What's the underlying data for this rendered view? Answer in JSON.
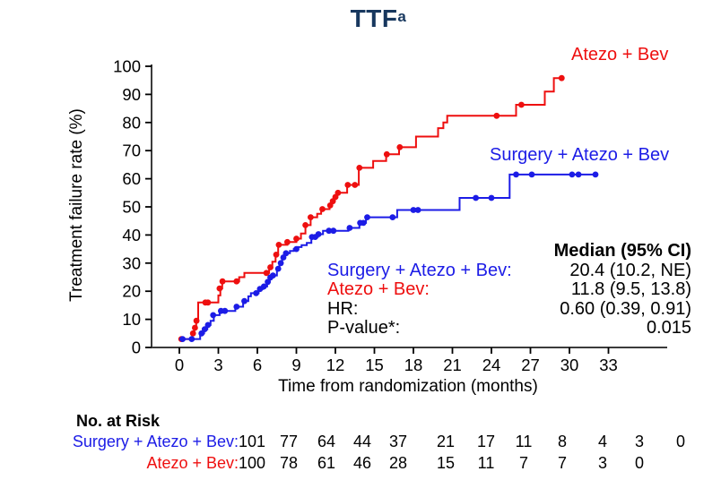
{
  "title": {
    "text": "TTF",
    "superscript": "a"
  },
  "colors": {
    "red": "#ee0f0f",
    "blue": "#1c1ce6",
    "title_navy": "#17375e",
    "axis": "#3b3b3b",
    "black": "#000000"
  },
  "chart_data": {
    "type": "line",
    "subtype": "kaplan-meier-step",
    "title": "TTF",
    "xlabel": "Time from randomization (months)",
    "ylabel": "Treatment failure rate (%)",
    "xlim": [
      0,
      33
    ],
    "ylim": [
      0,
      100
    ],
    "xticks": [
      0,
      3,
      6,
      9,
      12,
      15,
      18,
      21,
      24,
      27,
      30,
      33
    ],
    "yticks": [
      0,
      10,
      20,
      30,
      40,
      50,
      60,
      70,
      80,
      90,
      100
    ],
    "grid": false,
    "series": [
      {
        "name": "Atezo + Bev",
        "color": "#ee0f0f",
        "end_month": 29.6,
        "steps": [
          [
            0,
            3
          ],
          [
            1.0,
            5
          ],
          [
            1.15,
            7
          ],
          [
            1.3,
            9.5
          ],
          [
            1.45,
            16
          ],
          [
            3.0,
            18.5
          ],
          [
            3.15,
            21
          ],
          [
            3.3,
            23.5
          ],
          [
            4.6,
            25
          ],
          [
            5.0,
            26.5
          ],
          [
            6.9,
            28.5
          ],
          [
            7.15,
            30.5
          ],
          [
            7.4,
            33
          ],
          [
            7.6,
            36.5
          ],
          [
            8.3,
            37.5
          ],
          [
            9.0,
            38.7
          ],
          [
            9.35,
            40.5
          ],
          [
            9.7,
            43.5
          ],
          [
            10.1,
            46.3
          ],
          [
            10.6,
            47.5
          ],
          [
            10.9,
            49.2
          ],
          [
            11.55,
            50.5
          ],
          [
            11.75,
            52
          ],
          [
            11.95,
            53.5
          ],
          [
            12.15,
            55
          ],
          [
            12.9,
            57.8
          ],
          [
            13.8,
            63.9
          ],
          [
            14.9,
            66.3
          ],
          [
            15.9,
            68.7
          ],
          [
            16.9,
            71.2
          ],
          [
            18.2,
            75
          ],
          [
            19.9,
            78
          ],
          [
            20.3,
            80
          ],
          [
            20.6,
            82.4
          ],
          [
            25.9,
            86.3
          ],
          [
            28.1,
            91
          ],
          [
            28.8,
            95.8
          ]
        ],
        "censor_marks": [
          [
            0.15,
            3
          ],
          [
            1.05,
            5
          ],
          [
            1.2,
            7
          ],
          [
            1.32,
            9.5
          ],
          [
            2.0,
            16
          ],
          [
            2.2,
            16
          ],
          [
            3.1,
            21
          ],
          [
            3.32,
            23.5
          ],
          [
            4.4,
            23.5
          ],
          [
            6.7,
            26.5
          ],
          [
            7.0,
            28.5
          ],
          [
            7.45,
            33
          ],
          [
            7.65,
            36.5
          ],
          [
            8.3,
            37.5
          ],
          [
            9.0,
            38.7
          ],
          [
            9.7,
            43.5
          ],
          [
            10.1,
            46.3
          ],
          [
            11.0,
            49.2
          ],
          [
            11.6,
            50.5
          ],
          [
            11.8,
            52
          ],
          [
            12.0,
            53.5
          ],
          [
            12.2,
            55
          ],
          [
            12.95,
            57.8
          ],
          [
            13.5,
            57.8
          ],
          [
            13.85,
            63.9
          ],
          [
            15.95,
            68.7
          ],
          [
            16.95,
            71.2
          ],
          [
            24.4,
            82.4
          ],
          [
            26.3,
            86.3
          ],
          [
            29.4,
            95.8
          ]
        ]
      },
      {
        "name": "Surgery + Atezo + Bev",
        "color": "#1c1ce6",
        "end_month": 32.2,
        "steps": [
          [
            0,
            3
          ],
          [
            1.6,
            5
          ],
          [
            1.9,
            6.5
          ],
          [
            2.15,
            8
          ],
          [
            2.4,
            9.5
          ],
          [
            2.65,
            11.5
          ],
          [
            3.1,
            13
          ],
          [
            4.3,
            14.5
          ],
          [
            4.9,
            16.5
          ],
          [
            5.3,
            18.2
          ],
          [
            5.5,
            19.3
          ],
          [
            6.1,
            20.8
          ],
          [
            6.45,
            21.7
          ],
          [
            6.75,
            23.3
          ],
          [
            6.95,
            24.9
          ],
          [
            7.15,
            25.6
          ],
          [
            7.5,
            28
          ],
          [
            7.7,
            30
          ],
          [
            7.9,
            32
          ],
          [
            8.1,
            33.5
          ],
          [
            8.5,
            34.3
          ],
          [
            8.8,
            35
          ],
          [
            9.1,
            35.7
          ],
          [
            9.4,
            36.4
          ],
          [
            9.8,
            37.2
          ],
          [
            10.15,
            39.3
          ],
          [
            10.65,
            40.3
          ],
          [
            11.05,
            41.5
          ],
          [
            13.0,
            42.5
          ],
          [
            13.85,
            44.3
          ],
          [
            14.35,
            46.3
          ],
          [
            16.75,
            48.9
          ],
          [
            21.55,
            53.2
          ],
          [
            25.4,
            61.5
          ]
        ],
        "censor_marks": [
          [
            0.25,
            3
          ],
          [
            0.95,
            3
          ],
          [
            1.7,
            5
          ],
          [
            1.95,
            6.5
          ],
          [
            2.2,
            8
          ],
          [
            2.6,
            11.5
          ],
          [
            3.2,
            13
          ],
          [
            3.5,
            13
          ],
          [
            4.4,
            14.5
          ],
          [
            5.0,
            16.5
          ],
          [
            5.9,
            19.3
          ],
          [
            6.2,
            20.8
          ],
          [
            6.5,
            21.7
          ],
          [
            6.8,
            23.3
          ],
          [
            7.0,
            24.9
          ],
          [
            7.2,
            25.6
          ],
          [
            7.6,
            28
          ],
          [
            7.8,
            30
          ],
          [
            8.0,
            32
          ],
          [
            8.2,
            33.5
          ],
          [
            9.0,
            35
          ],
          [
            10.2,
            39.3
          ],
          [
            10.45,
            39.3
          ],
          [
            10.7,
            40.3
          ],
          [
            11.5,
            41.5
          ],
          [
            11.85,
            41.5
          ],
          [
            13.1,
            42.5
          ],
          [
            13.9,
            44.3
          ],
          [
            14.15,
            44.3
          ],
          [
            14.45,
            46.3
          ],
          [
            16.4,
            46.3
          ],
          [
            18.0,
            48.9
          ],
          [
            18.35,
            48.9
          ],
          [
            22.8,
            53.2
          ],
          [
            24.0,
            53.2
          ],
          [
            25.9,
            61.5
          ],
          [
            27.1,
            61.5
          ],
          [
            30.2,
            61.5
          ],
          [
            30.7,
            61.5
          ],
          [
            32.0,
            61.5
          ]
        ]
      }
    ],
    "curve_labels": {
      "red": "Atezo + Bev",
      "blue": "Surgery + Atezo + Bev"
    }
  },
  "stats": {
    "header": "Median (95% CI)",
    "rows": [
      {
        "label": "Surgery + Atezo + Bev:",
        "value": "20.4 (10.2, NE)",
        "color": "blue"
      },
      {
        "label": "Atezo + Bev:",
        "value": "11.8 (9.5, 13.8)",
        "color": "red"
      },
      {
        "label": "HR:",
        "value": "0.60 (0.39, 0.91)",
        "color": "black"
      },
      {
        "label": "P-value*:",
        "value": "0.015",
        "color": "black"
      }
    ]
  },
  "risk_table": {
    "heading": "No. at Risk",
    "rows": [
      {
        "label": "Surgery + Atezo + Bev:",
        "color": "blue",
        "values": [
          "101",
          "77",
          "64",
          "44",
          "37",
          "21",
          "17",
          "11",
          "8",
          "4",
          "3",
          "0"
        ]
      },
      {
        "label": "Atezo + Bev:",
        "color": "red",
        "values": [
          "100",
          "78",
          "61",
          "46",
          "28",
          "15",
          "11",
          "7",
          "7",
          "3",
          "0"
        ]
      }
    ]
  }
}
